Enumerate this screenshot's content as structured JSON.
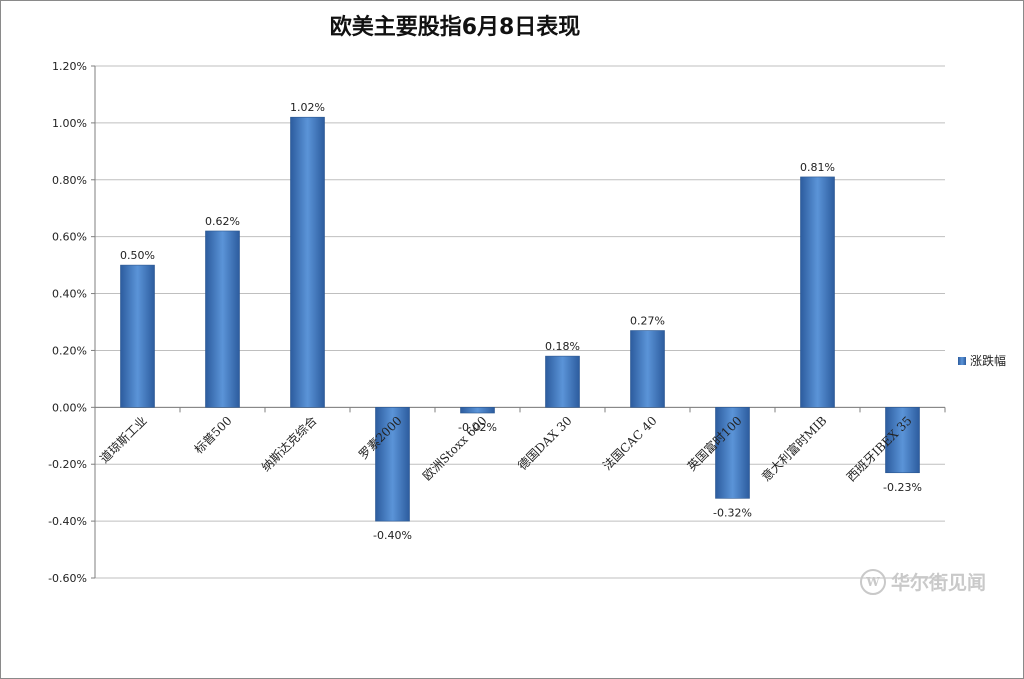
{
  "colors": {
    "bar_dark": "#2c5c9e",
    "bar_light": "#5b94d8",
    "grid": "#bfbfbf",
    "axis": "#7f7f7f"
  },
  "watermark": {
    "text": "华尔街见闻",
    "logo_glyph": "W"
  },
  "chart_data": {
    "type": "bar",
    "title": "欧美主要股指6月8日表现",
    "categories": [
      "道琼斯工业",
      "标普500",
      "纳斯达克综合",
      "罗素2000",
      "欧洲Stoxx 600",
      "德国DAX 30",
      "法国CAC 40",
      "英国富时100",
      "意大利富时MIB",
      "西班牙IBEX 35"
    ],
    "series": [
      {
        "name": "涨跌幅",
        "values": [
          0.5,
          0.62,
          1.02,
          -0.4,
          -0.02,
          0.18,
          0.27,
          -0.32,
          0.81,
          -0.23
        ]
      }
    ],
    "data_labels": [
      "0.50%",
      "0.62%",
      "1.02%",
      "-0.40%",
      "-0.02%",
      "0.18%",
      "0.27%",
      "-0.32%",
      "0.81%",
      "-0.23%"
    ],
    "y_ticks": [
      1.2,
      1.0,
      0.8,
      0.6,
      0.4,
      0.2,
      0.0,
      -0.2,
      -0.4,
      -0.6
    ],
    "y_tick_labels": [
      "1.20%",
      "1.00%",
      "0.80%",
      "0.60%",
      "0.40%",
      "0.20%",
      "0.00%",
      "-0.20%",
      "-0.40%",
      "-0.60%"
    ],
    "ylim": [
      -0.6,
      1.2
    ],
    "grid": true,
    "legend_position": "right"
  }
}
